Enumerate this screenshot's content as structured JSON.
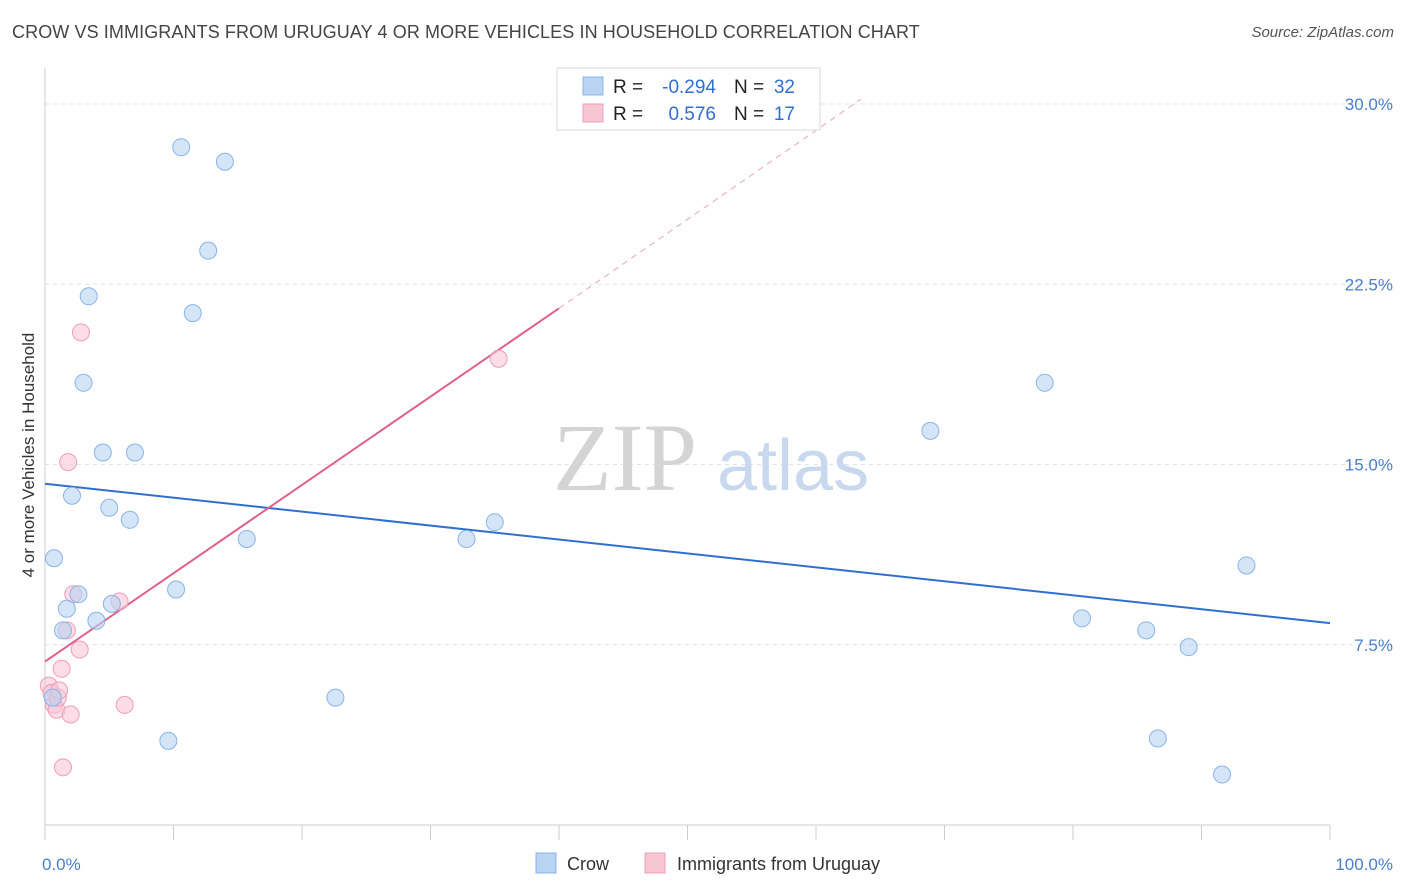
{
  "header": {
    "title": "CROW VS IMMIGRANTS FROM URUGUAY 4 OR MORE VEHICLES IN HOUSEHOLD CORRELATION CHART",
    "source": "Source: ZipAtlas.com"
  },
  "watermark": {
    "zip": "ZIP",
    "atlas": "atlas"
  },
  "legend": {
    "rows": [
      {
        "r_label": "R =",
        "r_value": "-0.294",
        "n_label": "N =",
        "n_value": "32"
      },
      {
        "r_label": "R =",
        "r_value": "0.576",
        "n_label": "N =",
        "n_value": "17"
      }
    ]
  },
  "bottom_legend": {
    "series1": "Crow",
    "series2": "Immigrants from Uruguay"
  },
  "colors": {
    "crow_fill": "#b9d3f3",
    "crow_stroke": "#8ab3e6",
    "crow_line": "#2f6fd0",
    "uru_fill": "#f7c6d5",
    "uru_stroke": "#ef9db7",
    "uru_line": "#e0608a",
    "grid": "#e3e3e3",
    "axis_tick_text": "#4a7fc8"
  },
  "chart_data": {
    "type": "scatter",
    "title": "CROW VS IMMIGRANTS FROM URUGUAY 4 OR MORE VEHICLES IN HOUSEHOLD CORRELATION CHART",
    "xlabel": "",
    "ylabel": "4 or more Vehicles in Household",
    "xlim": [
      0,
      100
    ],
    "ylim": [
      0,
      31
    ],
    "x_ticks_labeled": [
      "0.0%",
      "100.0%"
    ],
    "y_ticks": [
      {
        "value": 7.5,
        "label": "7.5%"
      },
      {
        "value": 15.0,
        "label": "15.0%"
      },
      {
        "value": 22.5,
        "label": "22.5%"
      },
      {
        "value": 30.0,
        "label": "30.0%"
      }
    ],
    "grid": true,
    "legend_position": "top-center",
    "series": [
      {
        "name": "Crow",
        "r": -0.294,
        "n": 32,
        "points": [
          [
            0.7,
            11.1
          ],
          [
            1.7,
            9.0
          ],
          [
            1.4,
            8.1
          ],
          [
            2.6,
            9.6
          ],
          [
            2.1,
            13.7
          ],
          [
            3.0,
            18.4
          ],
          [
            3.4,
            22.0
          ],
          [
            4.5,
            15.5
          ],
          [
            5.0,
            13.2
          ],
          [
            5.2,
            9.2
          ],
          [
            6.6,
            12.7
          ],
          [
            7.0,
            15.5
          ],
          [
            9.6,
            3.5
          ],
          [
            10.2,
            9.8
          ],
          [
            10.6,
            28.2
          ],
          [
            11.5,
            21.3
          ],
          [
            12.7,
            23.9
          ],
          [
            14.0,
            27.6
          ],
          [
            15.7,
            11.9
          ],
          [
            22.6,
            5.3
          ],
          [
            32.8,
            11.9
          ],
          [
            35.0,
            12.6
          ],
          [
            68.9,
            16.4
          ],
          [
            77.8,
            18.4
          ],
          [
            80.7,
            8.6
          ],
          [
            85.7,
            8.1
          ],
          [
            86.6,
            3.6
          ],
          [
            89.0,
            7.4
          ],
          [
            91.6,
            2.1
          ],
          [
            93.5,
            10.8
          ],
          [
            0.6,
            5.3
          ],
          [
            4.0,
            8.5
          ]
        ],
        "trend": {
          "x0": 0,
          "y0": 14.2,
          "x1": 100,
          "y1": 8.4
        }
      },
      {
        "name": "Immigrants from Uruguay",
        "r": 0.576,
        "n": 17,
        "points": [
          [
            0.3,
            5.8
          ],
          [
            0.5,
            5.5
          ],
          [
            0.7,
            5.0
          ],
          [
            0.9,
            4.8
          ],
          [
            1.0,
            5.3
          ],
          [
            1.1,
            5.6
          ],
          [
            1.3,
            6.5
          ],
          [
            1.4,
            2.4
          ],
          [
            1.7,
            8.1
          ],
          [
            1.8,
            15.1
          ],
          [
            2.0,
            4.6
          ],
          [
            2.2,
            9.6
          ],
          [
            2.7,
            7.3
          ],
          [
            2.8,
            20.5
          ],
          [
            5.8,
            9.3
          ],
          [
            6.2,
            5.0
          ],
          [
            35.3,
            19.4
          ]
        ],
        "trend": {
          "x0": 0,
          "y0": 6.8,
          "x1": 40,
          "y1": 21.5
        },
        "trend_dashed_to": {
          "x": 63.5,
          "y": 30.2
        }
      }
    ]
  }
}
